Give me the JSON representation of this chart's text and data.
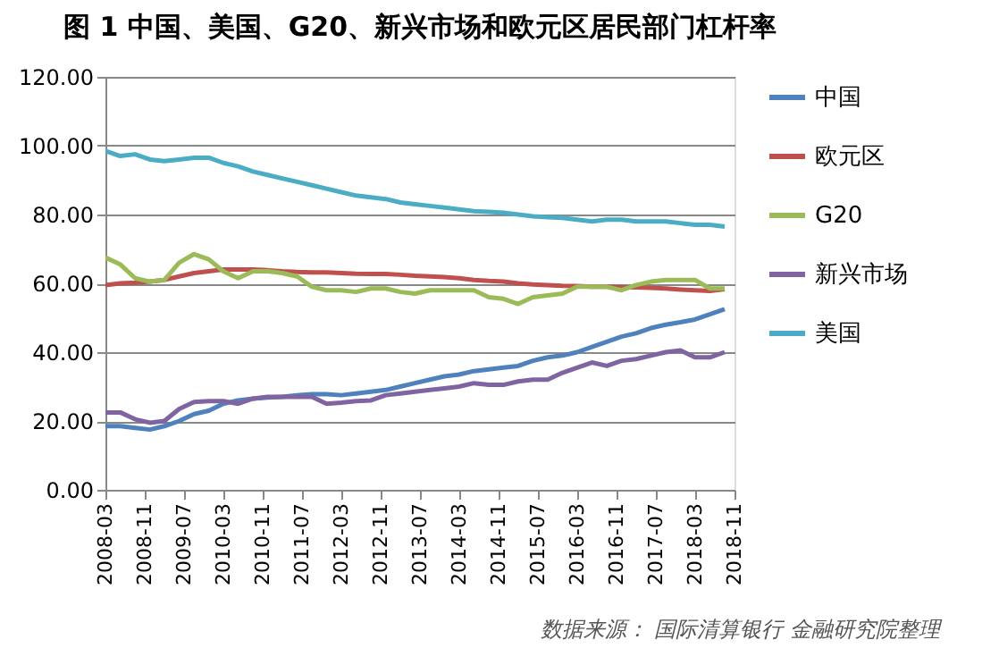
{
  "chart_data": {
    "type": "line",
    "title": "图 1 中国、美国、G20、新兴市场和欧元区居民部门杠杆率",
    "x": [
      "2008-03",
      "2008-06",
      "2008-09",
      "2008-12",
      "2009-03",
      "2009-06",
      "2009-09",
      "2009-12",
      "2010-03",
      "2010-06",
      "2010-09",
      "2010-12",
      "2011-03",
      "2011-06",
      "2011-09",
      "2011-12",
      "2012-03",
      "2012-06",
      "2012-09",
      "2012-12",
      "2013-03",
      "2013-06",
      "2013-09",
      "2013-12",
      "2014-03",
      "2014-06",
      "2014-09",
      "2014-12",
      "2015-03",
      "2015-06",
      "2015-09",
      "2015-12",
      "2016-03",
      "2016-06",
      "2016-09",
      "2016-12",
      "2017-03",
      "2017-06",
      "2017-09",
      "2017-12",
      "2018-03",
      "2018-06",
      "2018-09"
    ],
    "series": [
      {
        "name": "中国",
        "color": "#4f81bd",
        "values": [
          18.5,
          18.5,
          18,
          17.5,
          18.5,
          20,
          22,
          23,
          25,
          26,
          26.5,
          26.8,
          27,
          27.5,
          27.8,
          27.8,
          27.5,
          28,
          28.5,
          29,
          30,
          31,
          32,
          33,
          33.5,
          34.5,
          35,
          35.5,
          36,
          37.5,
          38.5,
          39,
          40,
          41.5,
          43,
          44.5,
          45.5,
          47,
          48,
          48.7,
          49.5,
          51,
          52.5
        ]
      },
      {
        "name": "欧元区",
        "color": "#c0504d",
        "values": [
          59.5,
          60,
          60.2,
          60.5,
          61,
          62,
          63,
          63.5,
          64,
          64,
          64,
          63.8,
          63.5,
          63.3,
          63.2,
          63.2,
          63,
          62.8,
          62.7,
          62.7,
          62.5,
          62.2,
          62,
          61.8,
          61.5,
          61,
          60.7,
          60.5,
          60,
          59.7,
          59.5,
          59.3,
          59.2,
          59,
          59,
          58.8,
          58.8,
          58.7,
          58.5,
          58.2,
          58,
          57.8,
          58.3
        ]
      },
      {
        "name": "G20",
        "color": "#9bbb59",
        "values": [
          67.5,
          65.5,
          61.5,
          60.5,
          61,
          66,
          68.5,
          67,
          63.5,
          61.5,
          63.5,
          63.5,
          63,
          62,
          59,
          58,
          58,
          57.5,
          58.5,
          58.5,
          57.5,
          57,
          58,
          58,
          58,
          58,
          56,
          55.5,
          54,
          56,
          56.5,
          57,
          59,
          59,
          59,
          58,
          59.5,
          60.5,
          61,
          61,
          61,
          58.5,
          58.5
        ]
      },
      {
        "name": "新兴市场",
        "color": "#8064a2",
        "values": [
          22.5,
          22.5,
          20.5,
          19.5,
          20,
          23.5,
          25.5,
          25.8,
          25.8,
          25,
          26.5,
          27,
          27,
          27,
          27,
          25,
          25.3,
          25.8,
          26,
          27.5,
          28,
          28.5,
          29,
          29.5,
          30,
          31,
          30.5,
          30.5,
          31.5,
          32,
          32,
          34,
          35.5,
          37,
          36,
          37.5,
          38,
          39,
          40,
          40.5,
          38.5,
          38.5,
          40
        ]
      },
      {
        "name": "美国",
        "color": "#4bacc6",
        "values": [
          98.5,
          97,
          97.5,
          96,
          95.5,
          96,
          96.5,
          96.5,
          95,
          94,
          92.5,
          91.5,
          90.5,
          89.5,
          88.5,
          87.5,
          86.5,
          85.5,
          85,
          84.5,
          83.5,
          83,
          82.5,
          82,
          81.5,
          81,
          80.8,
          80.5,
          80,
          79.5,
          79.2,
          79,
          78.5,
          78,
          78.5,
          78.5,
          78,
          78,
          78,
          77.5,
          77,
          77,
          76.5
        ]
      }
    ],
    "xlim": [
      "2008-03",
      "2018-11"
    ],
    "xticks": [
      "2008-03",
      "2008-11",
      "2009-07",
      "2010-03",
      "2010-11",
      "2011-07",
      "2012-03",
      "2012-11",
      "2013-07",
      "2014-03",
      "2014-11",
      "2015-07",
      "2016-03",
      "2016-11",
      "2017-07",
      "2018-03",
      "2018-11"
    ],
    "ylim": [
      0,
      120
    ],
    "yticks": [
      {
        "value": 0,
        "label": "0.00"
      },
      {
        "value": 20,
        "label": "20.00"
      },
      {
        "value": 40,
        "label": "40.00"
      },
      {
        "value": 60,
        "label": "60.00"
      },
      {
        "value": 80,
        "label": "80.00"
      },
      {
        "value": 100,
        "label": "100.00"
      },
      {
        "value": 120,
        "label": "120.00"
      }
    ],
    "grid": "y",
    "legend": "right",
    "line_style": "solid",
    "marker": "none",
    "annotations": [
      "数据来源：   国际清算银行 金融研究院整理"
    ]
  }
}
